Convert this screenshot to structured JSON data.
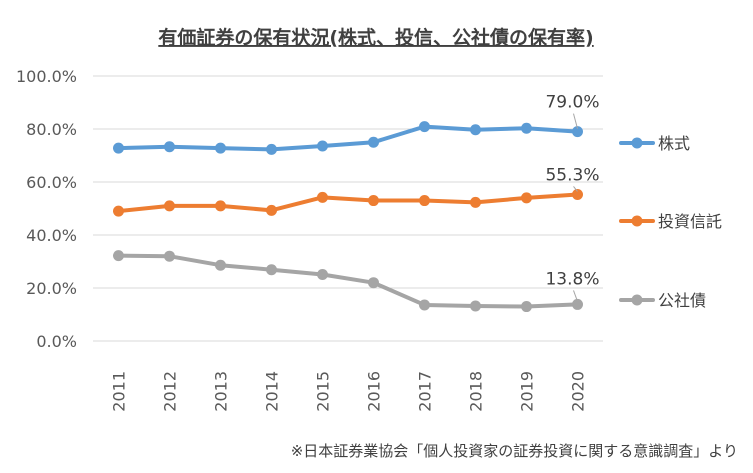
{
  "chart_data": {
    "type": "line",
    "title": "有価証券の保有状況(株式、投信、公社債の保有率)",
    "categories": [
      "2011",
      "2012",
      "2013",
      "2014",
      "2015",
      "2016",
      "2017",
      "2018",
      "2019",
      "2020"
    ],
    "series": [
      {
        "name": "株式",
        "color": "#5B9BD5",
        "values": [
          72.8,
          73.3,
          72.8,
          72.3,
          73.6,
          75.0,
          80.9,
          79.7,
          80.3,
          79.0
        ],
        "end_label": "79.0%"
      },
      {
        "name": "投資信託",
        "color": "#ED7D31",
        "values": [
          49.0,
          51.0,
          51.0,
          49.3,
          54.2,
          53.0,
          53.0,
          52.3,
          54.0,
          55.3
        ],
        "end_label": "55.3%"
      },
      {
        "name": "公社債",
        "color": "#A5A5A5",
        "values": [
          32.2,
          32.0,
          28.6,
          26.9,
          25.1,
          22.0,
          13.6,
          13.2,
          13.0,
          13.8
        ],
        "end_label": "13.8%"
      }
    ],
    "y_ticks": [
      "0.0%",
      "20.0%",
      "40.0%",
      "60.0%",
      "80.0%",
      "100.0%"
    ],
    "ylim": [
      0,
      100
    ],
    "grid": true,
    "legend_position": "right",
    "source_note": "※日本証券業協会「個人投資家の証券投資に関する意識調査」より"
  }
}
